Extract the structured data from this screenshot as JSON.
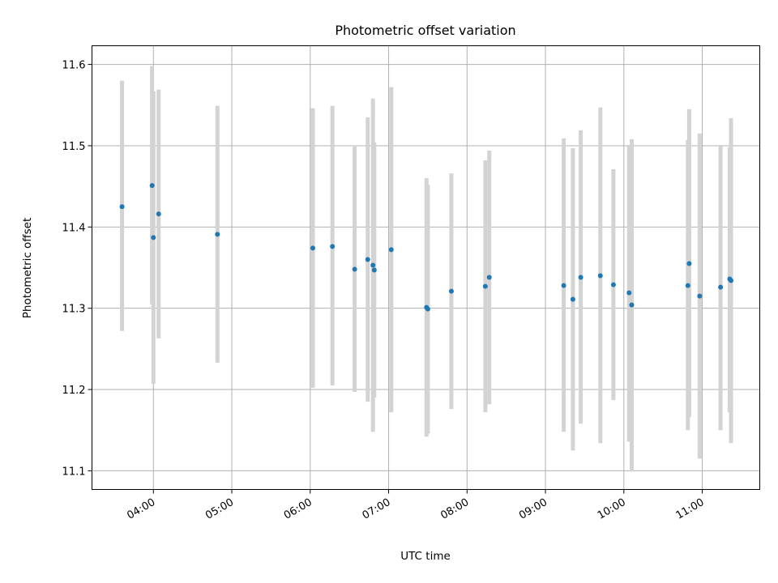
{
  "chart_data": {
    "type": "scatter",
    "title": "Photometric offset variation",
    "xlabel": "UTC time",
    "ylabel": "Photometric offset",
    "x_unit": "UTC time of day",
    "xlim": [
      "03:13",
      "11:44"
    ],
    "ylim": [
      11.077,
      11.623
    ],
    "x_ticks": [
      "04:00",
      "05:00",
      "06:00",
      "07:00",
      "08:00",
      "09:00",
      "10:00",
      "11:00"
    ],
    "y_ticks": [
      "11.1",
      "11.2",
      "11.3",
      "11.4",
      "11.5",
      "11.6"
    ],
    "grid": true,
    "colors": {
      "marker": "#1f77b4",
      "errorbar": "#d3d3d3",
      "grid": "#b0b0b0"
    },
    "points": [
      {
        "x": "03:36",
        "y": 11.425,
        "ylow": 11.272,
        "yhigh": 11.58
      },
      {
        "x": "03:59",
        "y": 11.451,
        "ylow": 11.305,
        "yhigh": 11.598
      },
      {
        "x": "04:00",
        "y": 11.387,
        "ylow": 11.207,
        "yhigh": 11.567
      },
      {
        "x": "04:04",
        "y": 11.416,
        "ylow": 11.263,
        "yhigh": 11.569
      },
      {
        "x": "04:49",
        "y": 11.391,
        "ylow": 11.233,
        "yhigh": 11.549
      },
      {
        "x": "06:02",
        "y": 11.374,
        "ylow": 11.202,
        "yhigh": 11.546
      },
      {
        "x": "06:17",
        "y": 11.376,
        "ylow": 11.205,
        "yhigh": 11.549
      },
      {
        "x": "06:34",
        "y": 11.348,
        "ylow": 11.197,
        "yhigh": 11.499
      },
      {
        "x": "06:44",
        "y": 11.36,
        "ylow": 11.185,
        "yhigh": 11.535
      },
      {
        "x": "06:48",
        "y": 11.353,
        "ylow": 11.148,
        "yhigh": 11.558
      },
      {
        "x": "06:49",
        "y": 11.347,
        "ylow": 11.19,
        "yhigh": 11.504
      },
      {
        "x": "07:02",
        "y": 11.372,
        "ylow": 11.172,
        "yhigh": 11.572
      },
      {
        "x": "07:29",
        "y": 11.301,
        "ylow": 11.142,
        "yhigh": 11.46
      },
      {
        "x": "07:30",
        "y": 11.299,
        "ylow": 11.146,
        "yhigh": 11.452
      },
      {
        "x": "07:48",
        "y": 11.321,
        "ylow": 11.176,
        "yhigh": 11.466
      },
      {
        "x": "08:14",
        "y": 11.327,
        "ylow": 11.172,
        "yhigh": 11.482
      },
      {
        "x": "08:17",
        "y": 11.338,
        "ylow": 11.182,
        "yhigh": 11.494
      },
      {
        "x": "09:14",
        "y": 11.328,
        "ylow": 11.148,
        "yhigh": 11.509
      },
      {
        "x": "09:21",
        "y": 11.311,
        "ylow": 11.125,
        "yhigh": 11.497
      },
      {
        "x": "09:27",
        "y": 11.338,
        "ylow": 11.158,
        "yhigh": 11.519
      },
      {
        "x": "09:42",
        "y": 11.34,
        "ylow": 11.134,
        "yhigh": 11.547
      },
      {
        "x": "09:52",
        "y": 11.329,
        "ylow": 11.187,
        "yhigh": 11.471
      },
      {
        "x": "10:04",
        "y": 11.319,
        "ylow": 11.136,
        "yhigh": 11.501
      },
      {
        "x": "10:06",
        "y": 11.304,
        "ylow": 11.099,
        "yhigh": 11.508
      },
      {
        "x": "10:49",
        "y": 11.328,
        "ylow": 11.15,
        "yhigh": 11.507
      },
      {
        "x": "10:50",
        "y": 11.355,
        "ylow": 11.166,
        "yhigh": 11.545
      },
      {
        "x": "10:58",
        "y": 11.315,
        "ylow": 11.115,
        "yhigh": 11.515
      },
      {
        "x": "11:14",
        "y": 11.326,
        "ylow": 11.15,
        "yhigh": 11.501
      },
      {
        "x": "11:21",
        "y": 11.336,
        "ylow": 11.172,
        "yhigh": 11.498
      },
      {
        "x": "11:22",
        "y": 11.334,
        "ylow": 11.134,
        "yhigh": 11.534
      }
    ]
  }
}
